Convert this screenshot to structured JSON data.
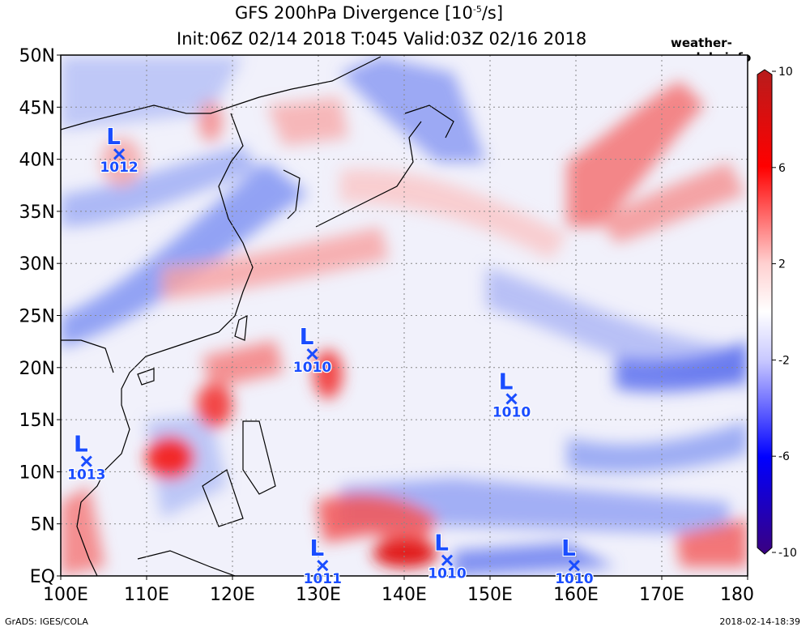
{
  "title": {
    "line1_prefix": "GFS 200hPa Divergence [10",
    "line1_exponent": "-5",
    "line1_suffix": "/s]",
    "line2": "Init:06Z 02/14 2018 T:045 Valid:03Z 02/16 2018"
  },
  "watermark": "weather-models.info",
  "footer": {
    "left": "GrADS: IGES/COLA",
    "right": "2018-02-14-18:39"
  },
  "axes": {
    "y_ticks": [
      "EQ",
      "5N",
      "10N",
      "15N",
      "20N",
      "25N",
      "30N",
      "35N",
      "40N",
      "45N",
      "50N"
    ],
    "x_ticks": [
      "100E",
      "110E",
      "120E",
      "130E",
      "140E",
      "150E",
      "160E",
      "170E",
      "180"
    ]
  },
  "colorbar": {
    "labels": [
      "10",
      "6",
      "2",
      "-2",
      "-6",
      "-10"
    ],
    "colors": [
      "#b71c1c",
      "#ff0000",
      "#ffd0d0",
      "#ffffff",
      "#c8c8ff",
      "#0000ff",
      "#3a0080"
    ]
  },
  "lows": [
    {
      "label": "1012",
      "lon": 106.8,
      "lat": 40.5
    },
    {
      "label": "1010",
      "lon": 129.3,
      "lat": 21.3
    },
    {
      "label": "1010",
      "lon": 152.5,
      "lat": 17.0
    },
    {
      "label": "1013",
      "lon": 103.0,
      "lat": 11.0
    },
    {
      "label": "1011",
      "lon": 130.5,
      "lat": 1.0
    },
    {
      "label": "1010",
      "lon": 145.0,
      "lat": 1.5
    },
    {
      "label": "1010",
      "lon": 159.8,
      "lat": 1.0
    }
  ]
}
